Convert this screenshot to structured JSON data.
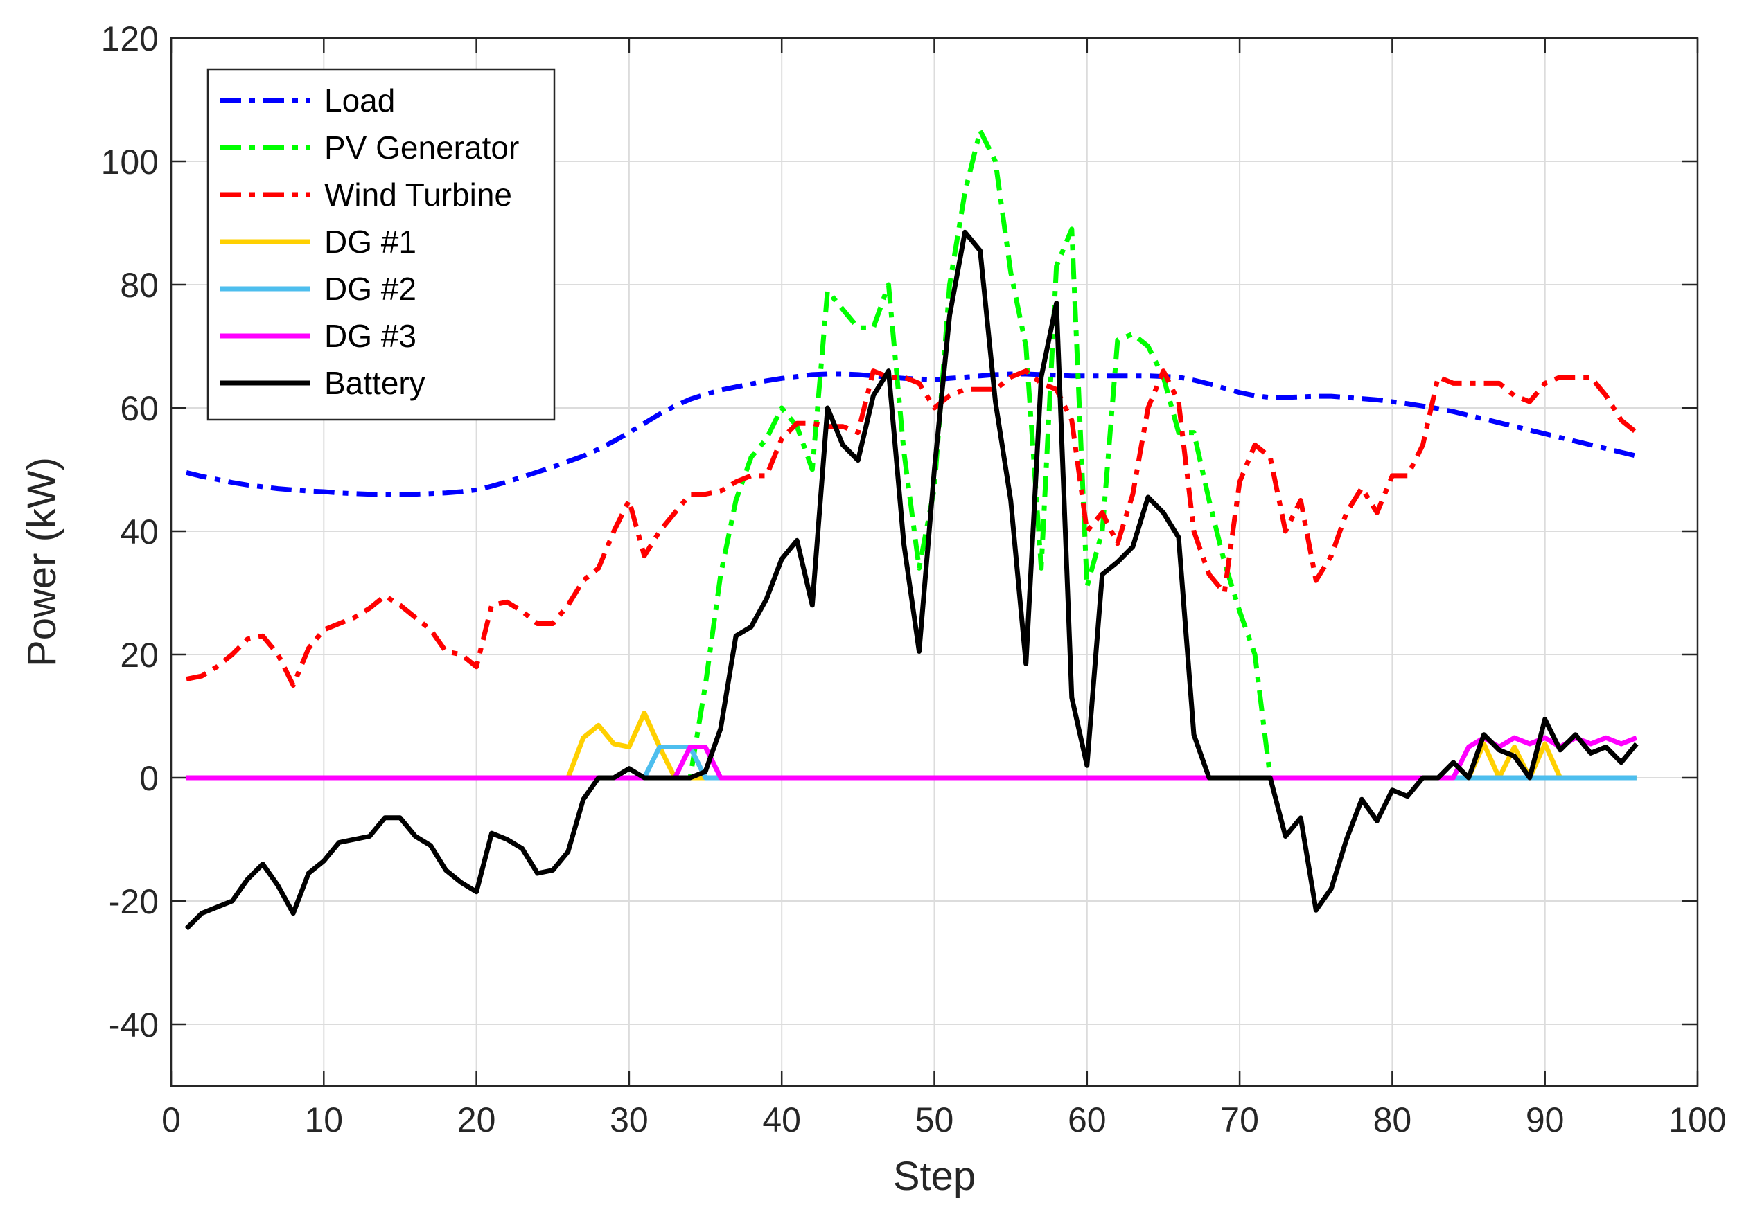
{
  "chart_data": {
    "type": "line",
    "title": "",
    "xlabel": "Step",
    "ylabel": "Power (kW)",
    "xlim": [
      0,
      100
    ],
    "ylim": [
      -50,
      120
    ],
    "xticks": [
      0,
      10,
      20,
      30,
      40,
      50,
      60,
      70,
      80,
      90,
      100
    ],
    "yticks": [
      -40,
      -20,
      0,
      20,
      40,
      60,
      80,
      100,
      120
    ],
    "xtick_labels": [
      "0",
      "10",
      "20",
      "30",
      "40",
      "50",
      "60",
      "70",
      "80",
      "90",
      "100"
    ],
    "ytick_labels": [
      "-40",
      "-20",
      "0",
      "20",
      "40",
      "60",
      "80",
      "100",
      "120"
    ],
    "grid": true,
    "legend_position": "top-left",
    "x": [
      1,
      2,
      3,
      4,
      5,
      6,
      7,
      8,
      9,
      10,
      11,
      12,
      13,
      14,
      15,
      16,
      17,
      18,
      19,
      20,
      21,
      22,
      23,
      24,
      25,
      26,
      27,
      28,
      29,
      30,
      31,
      32,
      33,
      34,
      35,
      36,
      37,
      38,
      39,
      40,
      41,
      42,
      43,
      44,
      45,
      46,
      47,
      48,
      49,
      50,
      51,
      52,
      53,
      54,
      55,
      56,
      57,
      58,
      59,
      60,
      61,
      62,
      63,
      64,
      65,
      66,
      67,
      68,
      69,
      70,
      71,
      72,
      73,
      74,
      75,
      76,
      77,
      78,
      79,
      80,
      81,
      82,
      83,
      84,
      85,
      86,
      87,
      88,
      89,
      90,
      91,
      92,
      93,
      94,
      95,
      96
    ],
    "series": [
      {
        "name": "Load",
        "color": "#0000ff",
        "style": "dashdot",
        "values": [
          49.5,
          48.9,
          48.4,
          47.9,
          47.5,
          47.2,
          46.9,
          46.7,
          46.5,
          46.4,
          46.2,
          46.1,
          46.0,
          46.0,
          46.0,
          46.0,
          46.1,
          46.2,
          46.4,
          46.7,
          47.3,
          48.0,
          48.8,
          49.6,
          50.4,
          51.3,
          52.2,
          53.3,
          54.6,
          56.0,
          57.5,
          59.0,
          60.3,
          61.4,
          62.2,
          62.9,
          63.4,
          63.9,
          64.4,
          64.8,
          65.1,
          65.4,
          65.5,
          65.5,
          65.4,
          65.2,
          65.0,
          64.8,
          64.7,
          64.6,
          64.8,
          65.0,
          65.2,
          65.4,
          65.5,
          65.5,
          65.4,
          65.3,
          65.2,
          65.2,
          65.2,
          65.2,
          65.2,
          65.2,
          65.1,
          65.0,
          64.5,
          63.9,
          63.2,
          62.5,
          62.0,
          61.7,
          61.7,
          61.8,
          61.9,
          61.9,
          61.7,
          61.5,
          61.3,
          61.0,
          60.7,
          60.3,
          59.9,
          59.4,
          58.8,
          58.2,
          57.6,
          57.0,
          56.4,
          55.8,
          55.2,
          54.6,
          54.0,
          53.4,
          52.8,
          52.2
        ]
      },
      {
        "name": "PV Generator",
        "color": "#00ff00",
        "style": "dashdot",
        "values": [
          0,
          0,
          0,
          0,
          0,
          0,
          0,
          0,
          0,
          0,
          0,
          0,
          0,
          0,
          0,
          0,
          0,
          0,
          0,
          0,
          0,
          0,
          0,
          0,
          0,
          0,
          0,
          0,
          0,
          0,
          0,
          0,
          0,
          0,
          15,
          33,
          45,
          52,
          55,
          60,
          57,
          50,
          79,
          76,
          73,
          73,
          80,
          53,
          34,
          47,
          80,
          95,
          105,
          100,
          82,
          70,
          34,
          83,
          89,
          31,
          40,
          71,
          72,
          70,
          65,
          56,
          56,
          45,
          35,
          27,
          20,
          0,
          0,
          0,
          0,
          0,
          0,
          0,
          0,
          0,
          0,
          0,
          0,
          0,
          0,
          0,
          0,
          0,
          0,
          0,
          0,
          0,
          0,
          0,
          0,
          0
        ]
      },
      {
        "name": "Wind Turbine",
        "color": "#ff0000",
        "style": "dashdot",
        "values": [
          16,
          16.5,
          18,
          20,
          22.5,
          23,
          20,
          15,
          21,
          24,
          25,
          26,
          27.5,
          29.5,
          28,
          26,
          24,
          20.5,
          20,
          18,
          28,
          28.5,
          27,
          25,
          25,
          28,
          32,
          34,
          40,
          45,
          36,
          40,
          43,
          46,
          46,
          46.5,
          48,
          49,
          49,
          55,
          57.5,
          57.5,
          57,
          57,
          56,
          66,
          65,
          65,
          64,
          60,
          62,
          63,
          63,
          63,
          65,
          66,
          64,
          63,
          58,
          40,
          43,
          38,
          46,
          60,
          66,
          61,
          40,
          33,
          30,
          48,
          54,
          52,
          40,
          45,
          32,
          36,
          43,
          47,
          43,
          49,
          49,
          54,
          65,
          64,
          64,
          64,
          64,
          62,
          61,
          64,
          65,
          65,
          65,
          62,
          58,
          56
        ]
      },
      {
        "name": "DG #1",
        "color": "#ffd000",
        "style": "solid",
        "values": [
          0,
          0,
          0,
          0,
          0,
          0,
          0,
          0,
          0,
          0,
          0,
          0,
          0,
          0,
          0,
          0,
          0,
          0,
          0,
          0,
          0,
          0,
          0,
          0,
          0,
          0,
          6.5,
          8.5,
          5.5,
          5,
          10.5,
          5,
          0,
          0,
          0,
          0,
          0,
          0,
          0,
          0,
          0,
          0,
          0,
          0,
          0,
          0,
          0,
          0,
          0,
          0,
          0,
          0,
          0,
          0,
          0,
          0,
          0,
          0,
          0,
          0,
          0,
          0,
          0,
          0,
          0,
          0,
          0,
          0,
          0,
          0,
          0,
          0,
          0,
          0,
          0,
          0,
          0,
          0,
          0,
          0,
          0,
          0,
          0,
          0,
          0,
          5.5,
          0,
          5,
          0,
          5.5,
          0,
          0,
          0,
          0,
          0,
          0
        ]
      },
      {
        "name": "DG #2",
        "color": "#4dbeee",
        "style": "solid",
        "values": [
          0,
          0,
          0,
          0,
          0,
          0,
          0,
          0,
          0,
          0,
          0,
          0,
          0,
          0,
          0,
          0,
          0,
          0,
          0,
          0,
          0,
          0,
          0,
          0,
          0,
          0,
          0,
          0,
          0,
          0,
          0,
          5,
          5,
          5,
          0,
          0,
          0,
          0,
          0,
          0,
          0,
          0,
          0,
          0,
          0,
          0,
          0,
          0,
          0,
          0,
          0,
          0,
          0,
          0,
          0,
          0,
          0,
          0,
          0,
          0,
          0,
          0,
          0,
          0,
          0,
          0,
          0,
          0,
          0,
          0,
          0,
          0,
          0,
          0,
          0,
          0,
          0,
          0,
          0,
          0,
          0,
          0,
          0,
          0,
          0,
          0,
          0,
          0,
          0,
          0,
          0,
          0,
          0,
          0,
          0,
          0
        ]
      },
      {
        "name": "DG #3",
        "color": "#ff00ff",
        "style": "solid",
        "values": [
          0,
          0,
          0,
          0,
          0,
          0,
          0,
          0,
          0,
          0,
          0,
          0,
          0,
          0,
          0,
          0,
          0,
          0,
          0,
          0,
          0,
          0,
          0,
          0,
          0,
          0,
          0,
          0,
          0,
          0,
          0,
          0,
          0,
          5,
          5,
          0,
          0,
          0,
          0,
          0,
          0,
          0,
          0,
          0,
          0,
          0,
          0,
          0,
          0,
          0,
          0,
          0,
          0,
          0,
          0,
          0,
          0,
          0,
          0,
          0,
          0,
          0,
          0,
          0,
          0,
          0,
          0,
          0,
          0,
          0,
          0,
          0,
          0,
          0,
          0,
          0,
          0,
          0,
          0,
          0,
          0,
          0,
          0,
          0,
          5,
          6.5,
          5,
          6.5,
          5.5,
          6.5,
          5,
          6.5,
          5.5,
          6.5,
          5.5,
          6.5
        ]
      },
      {
        "name": "Battery",
        "color": "#000000",
        "style": "solid",
        "values": [
          -24.5,
          -22,
          -21,
          -20,
          -16.5,
          -14,
          -17.5,
          -22,
          -15.5,
          -13.5,
          -10.5,
          -10,
          -9.5,
          -6.5,
          -6.5,
          -9.5,
          -11,
          -15,
          -17,
          -18.5,
          -9,
          -10,
          -11.5,
          -15.5,
          -15,
          -12,
          -3.5,
          0,
          0,
          1.5,
          0,
          0,
          0,
          0,
          1,
          8,
          23,
          24.5,
          29,
          35.5,
          38.5,
          28,
          60,
          54,
          51.5,
          62,
          66,
          38,
          20.5,
          50,
          75,
          88.5,
          85.5,
          61,
          45,
          18.5,
          65,
          77,
          13,
          2,
          33,
          35,
          37.5,
          45.5,
          43,
          39,
          7,
          0,
          0,
          0,
          0,
          0,
          -9.5,
          -6.5,
          -21.5,
          -18,
          -10,
          -3.5,
          -7,
          -2,
          -3,
          0,
          0,
          2.5,
          0,
          7,
          4.5,
          3.5,
          0,
          9.5,
          4.5,
          7,
          4,
          5,
          2.5,
          5.5
        ]
      }
    ]
  }
}
